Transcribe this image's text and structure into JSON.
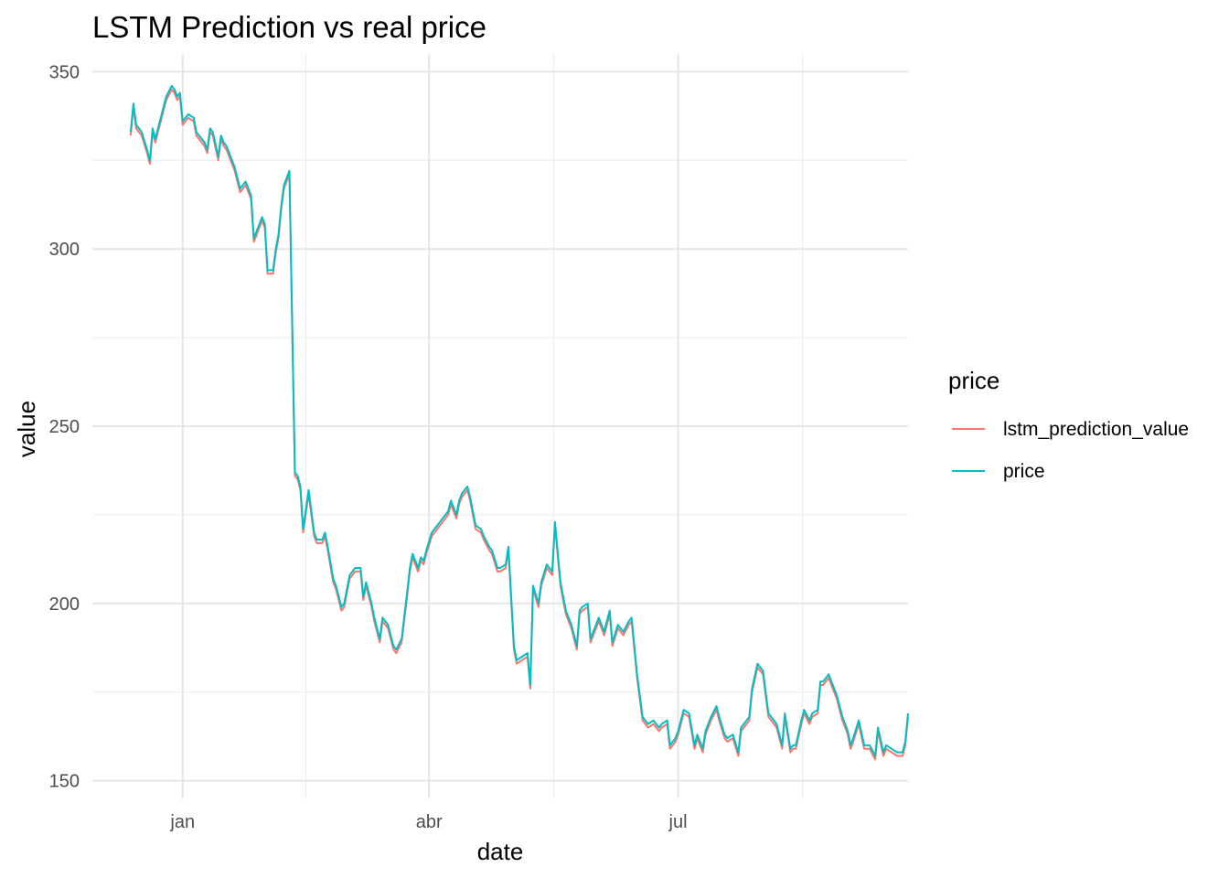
{
  "chart_data": {
    "type": "line",
    "title": "LSTM Prediction vs real price",
    "xlabel": "date",
    "ylabel": "value",
    "ylim": [
      145,
      355
    ],
    "y_ticks": [
      150,
      200,
      250,
      300,
      350
    ],
    "x_ticks": [
      {
        "day": 33,
        "label": "jan"
      },
      {
        "day": 123,
        "label": "abr"
      },
      {
        "day": 214,
        "label": "jul"
      }
    ],
    "x_minor_ticks": [
      78,
      168.5,
      259.5
    ],
    "x_range": [
      0,
      298
    ],
    "legend": {
      "title": "price",
      "position": "right",
      "entries": [
        {
          "label": "lstm_prediction_value",
          "color": "#F8766D"
        },
        {
          "label": "price",
          "color": "#00BFC4"
        }
      ]
    },
    "series": [
      {
        "name": "lstm_prediction_value",
        "color": "#F8766D",
        "offset": -1.0
      },
      {
        "name": "price",
        "color": "#00BFC4",
        "x": [
          14,
          15,
          16,
          18,
          20,
          21,
          22,
          23,
          25,
          27,
          29,
          30,
          31,
          32,
          33,
          34,
          35,
          37,
          38,
          39,
          41,
          42,
          43,
          44,
          46,
          47,
          48,
          49,
          50,
          52,
          53,
          54,
          56,
          58,
          59,
          60,
          62,
          63,
          64,
          66,
          67,
          68,
          69,
          70,
          72,
          74,
          75,
          76,
          77,
          79,
          80,
          81,
          82,
          84,
          85,
          86,
          88,
          89,
          90,
          91,
          92,
          94,
          96,
          98,
          99,
          100,
          102,
          103,
          104,
          105,
          106,
          108,
          110,
          111,
          113,
          115,
          116,
          117,
          119,
          120,
          121,
          122,
          124,
          125,
          126,
          128,
          130,
          131,
          133,
          134,
          135,
          137,
          138,
          140,
          142,
          143,
          145,
          146,
          148,
          149,
          151,
          152,
          154,
          155,
          157,
          159,
          160,
          161,
          163,
          164,
          166,
          168,
          169,
          171,
          172,
          173,
          175,
          177,
          178,
          179,
          181,
          182,
          184,
          185,
          187,
          189,
          190,
          192,
          194,
          196,
          197,
          199,
          200,
          201,
          203,
          205,
          207,
          208,
          210,
          211,
          213,
          214,
          216,
          218,
          220,
          221,
          223,
          224,
          226,
          228,
          229,
          231,
          232,
          234,
          236,
          237,
          238,
          240,
          241,
          243,
          245,
          247,
          248,
          250,
          252,
          253,
          255,
          256,
          257,
          259,
          260,
          262,
          263,
          265,
          266,
          267,
          269,
          270,
          272,
          274,
          276,
          277,
          278,
          280,
          282,
          284,
          286,
          287,
          289,
          290,
          292,
          294,
          296,
          297,
          298
        ],
        "y": [
          333,
          341,
          335,
          333,
          328,
          325,
          334,
          331,
          337,
          343,
          346,
          345,
          343,
          344,
          336,
          337,
          338,
          337,
          333,
          332,
          330,
          328,
          334,
          333,
          326,
          332,
          330,
          329,
          327,
          323,
          320,
          317,
          319,
          315,
          303,
          305,
          309,
          307,
          294,
          294,
          300,
          304,
          312,
          318,
          322,
          237,
          236,
          233,
          221,
          232,
          226,
          220,
          218,
          218,
          220,
          216,
          207,
          205,
          202,
          199,
          200,
          208,
          210,
          210,
          202,
          206,
          200,
          196,
          193,
          190,
          196,
          194,
          188,
          187,
          190,
          203,
          210,
          214,
          210,
          213,
          212,
          215,
          220,
          221,
          222,
          224,
          226,
          229,
          225,
          229,
          231,
          233,
          230,
          222,
          221,
          219,
          216,
          215,
          210,
          210,
          211,
          216,
          188,
          184,
          185,
          186,
          177,
          205,
          200,
          206,
          211,
          209,
          223,
          206,
          202,
          198,
          194,
          188,
          198,
          199,
          200,
          190,
          194,
          196,
          192,
          198,
          189,
          194,
          192,
          195,
          196,
          180,
          174,
          168,
          166,
          167,
          165,
          166,
          167,
          160,
          162,
          164,
          170,
          169,
          160,
          163,
          159,
          164,
          168,
          171,
          168,
          163,
          162,
          163,
          158,
          165,
          166,
          168,
          176,
          183,
          181,
          169,
          168,
          166,
          160,
          169,
          159,
          160,
          160,
          167,
          170,
          167,
          169,
          170,
          178,
          178,
          180,
          178,
          174,
          168,
          164,
          160,
          162,
          167,
          160,
          160,
          157,
          165,
          158,
          160,
          159,
          158,
          158,
          161,
          169
        ]
      }
    ]
  }
}
